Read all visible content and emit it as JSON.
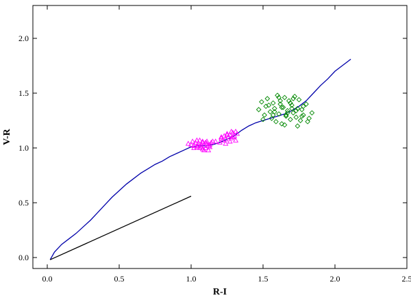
{
  "chart_data": {
    "type": "scatter",
    "xlabel": "R-I",
    "ylabel": "V-R",
    "xlim": [
      -0.1,
      2.5
    ],
    "ylim": [
      -0.1,
      2.3
    ],
    "grid": false,
    "x_ticks": [
      0.0,
      0.5,
      1.0,
      1.5,
      2.0,
      2.5
    ],
    "x_tick_labels": [
      "0.0",
      "0.5",
      "1.0",
      "1.5",
      "2.0",
      "2.5"
    ],
    "y_ticks": [
      0.0,
      0.5,
      1.0,
      1.5,
      2.0
    ],
    "y_tick_labels": [
      "0.0",
      "0.5",
      "1.0",
      "1.5",
      "2.0"
    ],
    "series": [
      {
        "kind": "line",
        "color": "#0000aa",
        "x": [
          0.02,
          0.05,
          0.1,
          0.15,
          0.2,
          0.25,
          0.3,
          0.35,
          0.4,
          0.45,
          0.5,
          0.55,
          0.6,
          0.65,
          0.7,
          0.75,
          0.8,
          0.85,
          0.9,
          0.95,
          1.0,
          1.05,
          1.1,
          1.15,
          1.2,
          1.25,
          1.3,
          1.35,
          1.4,
          1.45,
          1.5,
          1.55,
          1.6,
          1.65,
          1.7,
          1.75,
          1.8,
          1.85,
          1.9,
          1.95,
          2.0,
          2.05,
          2.11
        ],
        "y": [
          -0.02,
          0.05,
          0.12,
          0.17,
          0.22,
          0.28,
          0.34,
          0.41,
          0.48,
          0.55,
          0.61,
          0.67,
          0.72,
          0.77,
          0.81,
          0.85,
          0.88,
          0.92,
          0.95,
          0.98,
          1.01,
          1.02,
          1.02,
          1.03,
          1.05,
          1.08,
          1.11,
          1.16,
          1.2,
          1.23,
          1.25,
          1.27,
          1.29,
          1.31,
          1.34,
          1.38,
          1.43,
          1.5,
          1.57,
          1.63,
          1.7,
          1.75,
          1.81
        ]
      },
      {
        "kind": "line",
        "color": "#000000",
        "x": [
          0.02,
          1.0
        ],
        "y": [
          -0.02,
          0.56
        ]
      },
      {
        "kind": "scatter",
        "marker": "triangle",
        "color": "#ff00ff",
        "x": [
          0.98,
          1.0,
          1.01,
          1.02,
          1.03,
          1.04,
          1.05,
          1.06,
          1.06,
          1.07,
          1.08,
          1.08,
          1.09,
          1.1,
          1.1,
          1.11,
          1.12,
          1.13,
          1.14,
          1.15,
          1.02,
          1.04,
          1.07,
          1.09,
          1.11,
          1.13,
          1.05,
          1.08,
          1.12,
          1.17,
          1.2,
          1.21,
          1.22,
          1.23,
          1.24,
          1.25,
          1.26,
          1.27,
          1.28,
          1.29,
          1.3,
          1.31,
          1.32,
          1.24,
          1.27,
          1.29,
          1.31,
          1.21,
          1.25,
          1.28
        ],
        "y": [
          1.04,
          1.03,
          1.06,
          1.02,
          1.05,
          1.01,
          1.04,
          1.07,
          1.0,
          1.03,
          1.06,
          0.99,
          1.02,
          1.05,
          1.0,
          1.04,
          0.98,
          1.03,
          1.05,
          1.06,
          1.0,
          1.07,
          1.01,
          0.98,
          1.06,
          1.01,
          1.02,
          1.05,
          1.02,
          1.06,
          1.05,
          1.09,
          1.07,
          1.11,
          1.08,
          1.13,
          1.1,
          1.12,
          1.09,
          1.14,
          1.11,
          1.15,
          1.13,
          1.04,
          1.06,
          1.1,
          1.07,
          1.1,
          1.12,
          1.15
        ]
      },
      {
        "kind": "scatter",
        "marker": "diamond",
        "color": "#008800",
        "x": [
          1.47,
          1.49,
          1.51,
          1.52,
          1.53,
          1.55,
          1.56,
          1.57,
          1.58,
          1.59,
          1.6,
          1.61,
          1.62,
          1.63,
          1.64,
          1.65,
          1.66,
          1.67,
          1.68,
          1.69,
          1.7,
          1.71,
          1.72,
          1.73,
          1.74,
          1.75,
          1.76,
          1.77,
          1.78,
          1.8,
          1.82,
          1.84,
          1.5,
          1.54,
          1.58,
          1.62,
          1.66,
          1.7,
          1.74,
          1.78,
          1.57,
          1.61,
          1.65,
          1.69,
          1.73,
          1.77,
          1.81,
          1.63,
          1.67,
          1.71
        ],
        "y": [
          1.35,
          1.42,
          1.3,
          1.38,
          1.45,
          1.33,
          1.27,
          1.41,
          1.36,
          1.24,
          1.48,
          1.31,
          1.4,
          1.22,
          1.37,
          1.46,
          1.29,
          1.34,
          1.43,
          1.26,
          1.39,
          1.32,
          1.47,
          1.28,
          1.36,
          1.44,
          1.25,
          1.35,
          1.3,
          1.4,
          1.27,
          1.32,
          1.26,
          1.39,
          1.33,
          1.43,
          1.3,
          1.36,
          1.2,
          1.38,
          1.3,
          1.46,
          1.21,
          1.41,
          1.34,
          1.29,
          1.24,
          1.37,
          1.32,
          1.45
        ]
      }
    ]
  }
}
